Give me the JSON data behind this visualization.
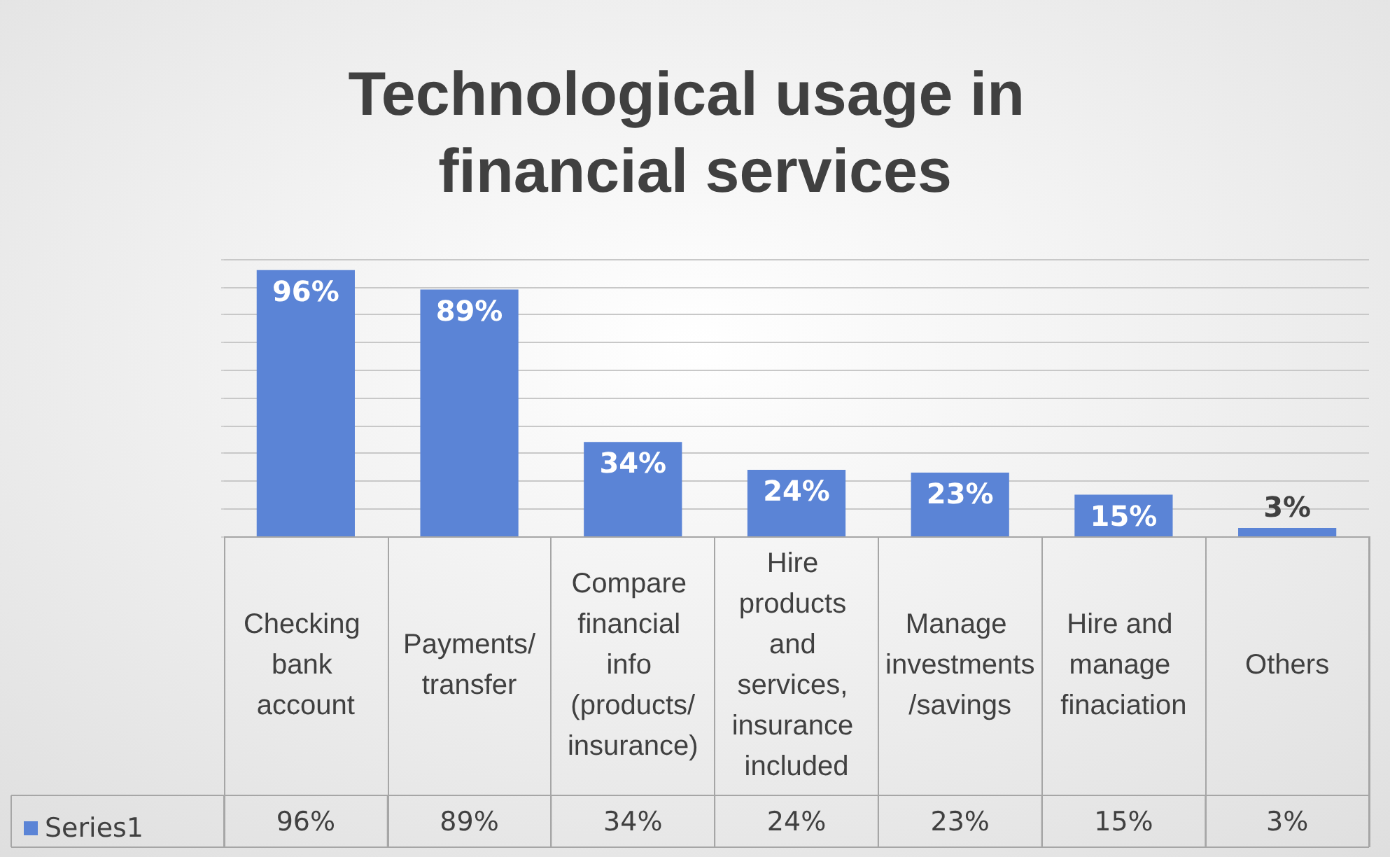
{
  "chart_data": {
    "type": "bar",
    "title": "Technological usage in financial services",
    "categories": [
      "Checking bank account",
      "Payments/transfer",
      "Compare financial info (products/insurance)",
      "Hire products and services, insurance included",
      "Manage investments/savings",
      "Hire and manage finaciation",
      "Others"
    ],
    "series": [
      {
        "name": "Series1",
        "color": "#5b84d6",
        "values": [
          96,
          89,
          34,
          24,
          23,
          15,
          3
        ],
        "value_labels": [
          "96%",
          "89%",
          "34%",
          "24%",
          "23%",
          "15%",
          "3%"
        ]
      }
    ],
    "ylim": [
      0,
      100
    ],
    "yticks": [
      {
        "value": 0,
        "label": null
      },
      {
        "value": 10,
        "label": null
      },
      {
        "value": 20,
        "label": null
      },
      {
        "value": 30,
        "label": null
      },
      {
        "value": 40,
        "label": null
      },
      {
        "value": 50,
        "label": null
      },
      {
        "value": 60,
        "label": null
      },
      {
        "value": 70,
        "label": null
      },
      {
        "value": 80,
        "label": null
      },
      {
        "value": 90,
        "label": null
      },
      {
        "value": 100,
        "label": null
      }
    ],
    "grid": "y",
    "legend": "bottom left",
    "tick_labels": "x"
  }
}
